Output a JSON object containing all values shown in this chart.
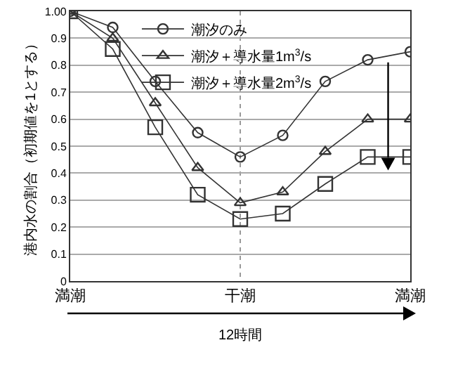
{
  "chart_data": {
    "type": "line",
    "xlabel": "12時間",
    "ylabel": "港内水の割合（初期値を1とする）",
    "categories": [
      "満潮",
      null,
      null,
      null,
      "干潮",
      null,
      null,
      null,
      "満潮"
    ],
    "ylim": [
      0,
      1
    ],
    "yticks": [
      0,
      0.1,
      0.2,
      0.3,
      0.4,
      0.5,
      0.6,
      0.7,
      0.8,
      0.9,
      {
        "value": 1,
        "label": "1.00"
      }
    ],
    "series": [
      {
        "name": "潮汐のみ",
        "color": "#333333",
        "marker": "circle",
        "values": [
          1.0,
          0.94,
          0.74,
          0.55,
          0.46,
          0.54,
          0.74,
          0.82,
          0.85
        ]
      },
      {
        "name": "潮汐＋導水量1m$^{3}$/s",
        "color": "#333333",
        "marker": "triangle",
        "values": [
          1.0,
          0.9,
          0.66,
          0.42,
          0.29,
          0.33,
          0.48,
          0.6,
          0.6
        ]
      },
      {
        "name": "潮汐＋導水量2m$^{3}$/s",
        "color": "#333333",
        "marker": "square",
        "values": [
          1.0,
          0.86,
          0.57,
          0.32,
          0.23,
          0.25,
          0.36,
          0.46,
          0.46
        ]
      }
    ],
    "grid": true,
    "legend": "top",
    "line_style": "solid"
  }
}
